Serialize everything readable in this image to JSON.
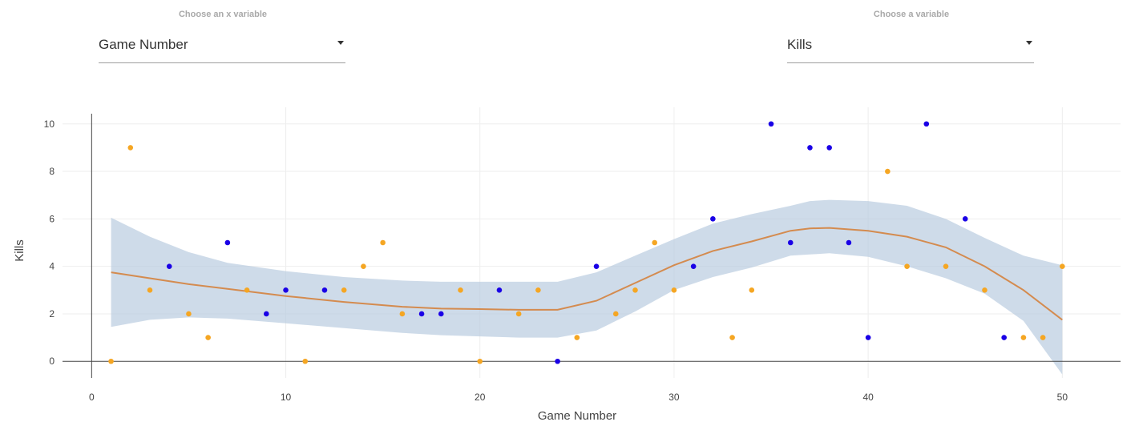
{
  "controls": {
    "x": {
      "label": "Choose an x variable",
      "value": "Game Number"
    },
    "y": {
      "label": "Choose a variable",
      "value": "Kills"
    }
  },
  "colors": {
    "orange": "#f5a623",
    "blue": "#1a00e6",
    "band": "#b3c7dd",
    "trend": "#d48b4f"
  },
  "chart_data": {
    "type": "scatter",
    "xlabel": "Game Number",
    "ylabel": "Kills",
    "xlim": [
      -1.5,
      53
    ],
    "ylim": [
      -0.7,
      10.7
    ],
    "xticks": [
      0,
      10,
      20,
      30,
      40,
      50
    ],
    "yticks": [
      0,
      2,
      4,
      6,
      8,
      10
    ],
    "grid": true,
    "series": [
      {
        "color": "orange",
        "points": [
          [
            1,
            0
          ],
          [
            2,
            9
          ],
          [
            3,
            3
          ],
          [
            5,
            2
          ],
          [
            6,
            1
          ],
          [
            8,
            3
          ],
          [
            11,
            0
          ],
          [
            13,
            3
          ],
          [
            14,
            4
          ],
          [
            15,
            5
          ],
          [
            16,
            2
          ],
          [
            19,
            3
          ],
          [
            20,
            0
          ],
          [
            22,
            2
          ],
          [
            23,
            3
          ],
          [
            25,
            1
          ],
          [
            27,
            2
          ],
          [
            28,
            3
          ],
          [
            29,
            5
          ],
          [
            30,
            3
          ],
          [
            33,
            1
          ],
          [
            34,
            3
          ],
          [
            41,
            8
          ],
          [
            42,
            4
          ],
          [
            44,
            4
          ],
          [
            46,
            3
          ],
          [
            48,
            1
          ],
          [
            49,
            1
          ],
          [
            50,
            4
          ]
        ]
      },
      {
        "color": "blue",
        "points": [
          [
            4,
            4
          ],
          [
            7,
            5
          ],
          [
            9,
            2
          ],
          [
            10,
            3
          ],
          [
            12,
            3
          ],
          [
            17,
            2
          ],
          [
            18,
            2
          ],
          [
            21,
            3
          ],
          [
            24,
            0
          ],
          [
            26,
            4
          ],
          [
            31,
            4
          ],
          [
            32,
            6
          ],
          [
            35,
            10
          ],
          [
            36,
            5
          ],
          [
            37,
            9
          ],
          [
            38,
            9
          ],
          [
            39,
            5
          ],
          [
            40,
            1
          ],
          [
            43,
            10
          ],
          [
            45,
            6
          ],
          [
            47,
            1
          ]
        ]
      }
    ],
    "trend": {
      "x": [
        1,
        3,
        5,
        7,
        10,
        13,
        16,
        18,
        20,
        22,
        24,
        26,
        28,
        30,
        32,
        34,
        36,
        37,
        38,
        40,
        42,
        44,
        46,
        48,
        50
      ],
      "y": [
        3.75,
        3.5,
        3.25,
        3.05,
        2.75,
        2.5,
        2.3,
        2.22,
        2.2,
        2.17,
        2.17,
        2.55,
        3.3,
        4.05,
        4.65,
        5.05,
        5.5,
        5.6,
        5.62,
        5.5,
        5.25,
        4.8,
        4.0,
        3.0,
        1.75
      ],
      "lower": [
        1.45,
        1.75,
        1.85,
        1.8,
        1.6,
        1.4,
        1.2,
        1.1,
        1.05,
        1.0,
        1.0,
        1.3,
        2.1,
        3.0,
        3.55,
        3.95,
        4.45,
        4.5,
        4.55,
        4.4,
        4.0,
        3.5,
        2.85,
        1.7,
        -0.55
      ],
      "upper": [
        6.05,
        5.25,
        4.6,
        4.15,
        3.8,
        3.55,
        3.4,
        3.35,
        3.35,
        3.35,
        3.35,
        3.75,
        4.45,
        5.15,
        5.8,
        6.2,
        6.55,
        6.75,
        6.8,
        6.75,
        6.55,
        6.0,
        5.2,
        4.45,
        4.05
      ]
    }
  }
}
